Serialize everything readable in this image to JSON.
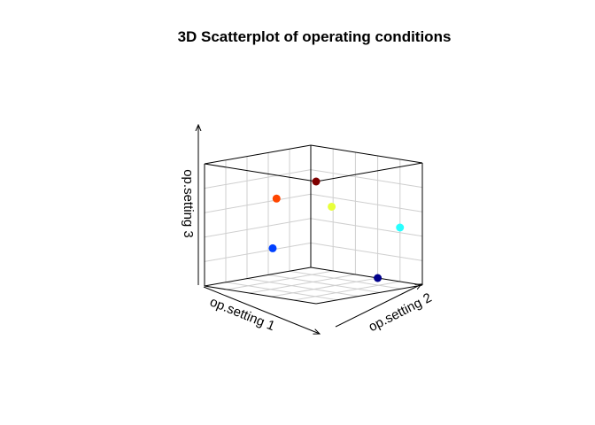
{
  "chart_data": {
    "type": "scatter",
    "projection": "3d",
    "title": "3D Scatterplot of operating conditions",
    "xlabel": "op.setting 1",
    "ylabel": "op.setting 2",
    "zlabel": "op.setting 3",
    "grid": true,
    "color_scheme": "jet",
    "points": [
      {
        "x": 1.0,
        "y": 1.0,
        "z": 1.0,
        "color": "#7f0000"
      },
      {
        "x": 0.9,
        "y": 0.55,
        "z": 0.78,
        "color": "#ff4500"
      },
      {
        "x": 0.78,
        "y": 0.93,
        "z": 0.75,
        "color": "#e8ff3a"
      },
      {
        "x": 0.2,
        "y": 0.99,
        "z": 0.5,
        "color": "#28ffff"
      },
      {
        "x": 0.39,
        "y": 0.03,
        "z": 0.22,
        "color": "#0040ff"
      },
      {
        "x": 0.0,
        "y": 0.6,
        "z": 0.0,
        "color": "#00008b"
      }
    ]
  }
}
